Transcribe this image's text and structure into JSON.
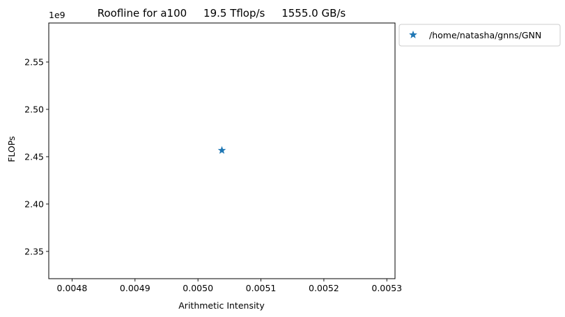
{
  "chart_data": {
    "type": "scatter",
    "title": "Roofline for a100     19.5 Tflop/s     1555.0 GB/s",
    "xlabel": "Arithmetic Intensity",
    "ylabel": "FLOPs",
    "y_offset_text": "1e9",
    "xlim": [
      0.004763,
      0.005313
    ],
    "ylim": [
      2.3212,
      2.5912
    ],
    "xticks": [
      0.0048,
      0.0049,
      0.005,
      0.0051,
      0.0052,
      0.0053
    ],
    "xtick_labels": [
      "0.0048",
      "0.0049",
      "0.0050",
      "0.0051",
      "0.0052",
      "0.0053"
    ],
    "yticks": [
      2.35,
      2.4,
      2.45,
      2.5,
      2.55
    ],
    "ytick_labels": [
      "2.35",
      "2.40",
      "2.45",
      "2.50",
      "2.55"
    ],
    "grid": false,
    "legend_position": "outside-upper-right",
    "series": [
      {
        "name": "/home/natasha/gnns/GNN",
        "marker": "star",
        "color": "#1f77b4",
        "points": [
          {
            "x": 0.005038,
            "y": 2.4567
          }
        ]
      }
    ]
  }
}
